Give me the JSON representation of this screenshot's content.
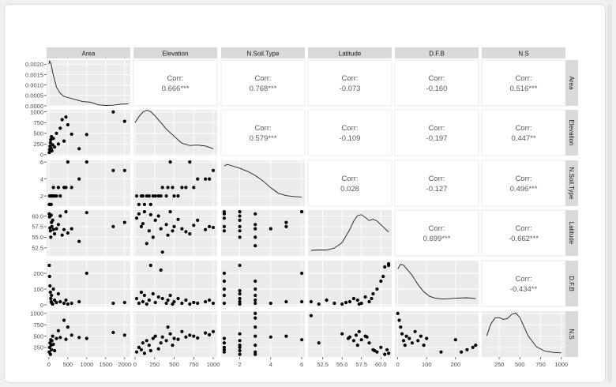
{
  "chart_data": {
    "type": "scatter",
    "variables": [
      "Area",
      "Elevation",
      "N.Soil.Type",
      "Latitude",
      "D.F.B",
      "N.S"
    ],
    "axes": {
      "Area": {
        "lim": [
          -60,
          2150
        ],
        "ticks": [
          0,
          500,
          1000,
          1500,
          2000
        ],
        "labels": [
          "0",
          "500",
          "1000",
          "1500",
          "2000"
        ]
      },
      "Elevation": {
        "lim": [
          -20,
          1050
        ],
        "ticks": [
          0,
          250,
          500,
          750,
          1000
        ],
        "labels": [
          "0",
          "250",
          "500",
          "750",
          "1000"
        ]
      },
      "N.Soil.Type": {
        "lim": [
          0.8,
          6.2
        ],
        "ticks": [
          2,
          4,
          6
        ],
        "labels": [
          "2",
          "4",
          "6"
        ]
      },
      "Latitude": {
        "lim": [
          50.6,
          61.4
        ],
        "ticks": [
          52.5,
          55.0,
          57.5,
          60.0
        ],
        "labels": [
          "52.5",
          "55.0",
          "57.5",
          "60.0"
        ]
      },
      "D.F.B": {
        "lim": [
          -10,
          280
        ],
        "ticks": [
          0,
          100,
          200
        ],
        "labels": [
          "0",
          "100",
          "200"
        ]
      },
      "N.S": {
        "lim": [
          40,
          1050
        ],
        "ticks": [
          250,
          500,
          750,
          1000
        ],
        "labels": [
          "250",
          "500",
          "750",
          "1000"
        ]
      }
    },
    "density_axis": {
      "lim": [
        0,
        0.0022
      ],
      "ticks": [
        0,
        0.0005,
        0.001,
        0.0015,
        0.002
      ],
      "labels": [
        "0.0000",
        "0.0005",
        "0.0010",
        "0.0015",
        "0.0020"
      ]
    },
    "correlations": [
      {
        "row": "Area",
        "col": "Elevation",
        "label": "Corr:",
        "value": "0.666***"
      },
      {
        "row": "Area",
        "col": "N.Soil.Type",
        "label": "Corr:",
        "value": "0.768***"
      },
      {
        "row": "Area",
        "col": "Latitude",
        "label": "Corr:",
        "value": "-0.073"
      },
      {
        "row": "Area",
        "col": "D.F.B",
        "label": "Corr:",
        "value": "-0.160"
      },
      {
        "row": "Area",
        "col": "N.S",
        "label": "Corr:",
        "value": "0.516***"
      },
      {
        "row": "Elevation",
        "col": "N.Soil.Type",
        "label": "Corr:",
        "value": "0.579***"
      },
      {
        "row": "Elevation",
        "col": "Latitude",
        "label": "Corr:",
        "value": "-0.109"
      },
      {
        "row": "Elevation",
        "col": "D.F.B",
        "label": "Corr:",
        "value": "-0.197"
      },
      {
        "row": "Elevation",
        "col": "N.S",
        "label": "Corr:",
        "value": "0.447**"
      },
      {
        "row": "N.Soil.Type",
        "col": "Latitude",
        "label": "Corr:",
        "value": "0.028"
      },
      {
        "row": "N.Soil.Type",
        "col": "D.F.B",
        "label": "Corr:",
        "value": "-0.127"
      },
      {
        "row": "N.Soil.Type",
        "col": "N.S",
        "label": "Corr:",
        "value": "0.496***"
      },
      {
        "row": "Latitude",
        "col": "D.F.B",
        "label": "Corr:",
        "value": "0.699***"
      },
      {
        "row": "Latitude",
        "col": "N.S",
        "label": "Corr:",
        "value": "-0.662***"
      },
      {
        "row": "D.F.B",
        "col": "N.S",
        "label": "Corr:",
        "value": "-0.434**"
      }
    ],
    "densities": {
      "Area": {
        "x": [
          0,
          20,
          60,
          100,
          200,
          300,
          400,
          500,
          700,
          900,
          1100,
          1300,
          1500,
          1700,
          1900,
          2100
        ],
        "y": [
          0.002,
          0.00215,
          0.002,
          0.0016,
          0.0009,
          0.0006,
          0.00045,
          0.0004,
          0.0003,
          0.0002,
          0.00018,
          5e-05,
          2e-05,
          3e-05,
          8e-05,
          0.0001
        ]
      },
      "Elevation": {
        "x": [
          0,
          50,
          100,
          150,
          200,
          250,
          300,
          350,
          400,
          500,
          600,
          700,
          800,
          900,
          1000
        ],
        "y": [
          0.72,
          0.85,
          0.95,
          0.99,
          0.96,
          0.88,
          0.78,
          0.68,
          0.58,
          0.42,
          0.27,
          0.22,
          0.23,
          0.21,
          0.15
        ]
      },
      "N.Soil.Type": {
        "x": [
          1,
          1.2,
          1.5,
          2,
          2.5,
          3,
          3.5,
          4,
          4.5,
          5,
          5.5,
          6
        ],
        "y": [
          0.88,
          0.91,
          0.88,
          0.83,
          0.76,
          0.67,
          0.55,
          0.4,
          0.28,
          0.23,
          0.21,
          0.2
        ]
      },
      "Latitude": {
        "x": [
          51,
          52,
          53,
          54,
          55,
          56,
          56.5,
          57,
          57.5,
          58,
          58.5,
          59,
          59.5,
          60,
          60.5,
          61
        ],
        "y": [
          0.12,
          0.13,
          0.13,
          0.17,
          0.29,
          0.58,
          0.76,
          0.88,
          0.9,
          0.84,
          0.77,
          0.8,
          0.76,
          0.68,
          0.6,
          0.52
        ]
      },
      "D.F.B": {
        "x": [
          0,
          10,
          20,
          30,
          50,
          70,
          90,
          110,
          130,
          160,
          200,
          240,
          270
        ],
        "y": [
          0.82,
          0.92,
          0.9,
          0.83,
          0.68,
          0.48,
          0.32,
          0.22,
          0.18,
          0.16,
          0.18,
          0.19,
          0.17
        ]
      },
      "N.S": {
        "x": [
          100,
          150,
          200,
          250,
          300,
          350,
          400,
          450,
          500,
          550,
          600,
          700,
          800,
          900,
          1000
        ],
        "y": [
          0.46,
          0.72,
          0.85,
          0.86,
          0.82,
          0.84,
          0.93,
          0.96,
          0.86,
          0.66,
          0.46,
          0.22,
          0.13,
          0.1,
          0.09
        ]
      }
    },
    "scatter": {
      "Elevation~Area": {
        "x": [
          10,
          20,
          30,
          40,
          50,
          60,
          70,
          80,
          100,
          120,
          150,
          200,
          250,
          300,
          350,
          400,
          450,
          500,
          600,
          800,
          1000,
          1700,
          2000
        ],
        "y": [
          50,
          120,
          200,
          280,
          350,
          150,
          420,
          90,
          230,
          380,
          180,
          500,
          250,
          620,
          820,
          320,
          880,
          700,
          480,
          140,
          470,
          1000,
          780
        ]
      },
      "N.Soil.Type~Area": {
        "x": [
          10,
          20,
          30,
          40,
          50,
          60,
          80,
          100,
          120,
          150,
          200,
          250,
          300,
          400,
          450,
          500,
          600,
          800,
          1000,
          1700,
          2000
        ],
        "y": [
          1,
          2,
          1,
          2,
          2,
          1,
          2,
          2,
          3,
          2,
          2,
          3,
          2,
          3,
          3,
          6,
          3,
          4,
          6,
          5,
          5
        ]
      },
      "N.Soil.Type~Elevation": {
        "x": [
          20,
          50,
          80,
          100,
          120,
          150,
          180,
          200,
          230,
          260,
          300,
          330,
          350,
          400,
          420,
          450,
          480,
          500,
          550,
          600,
          650,
          700,
          750,
          800,
          900,
          950,
          1000
        ],
        "y": [
          2,
          1,
          2,
          2,
          1,
          2,
          2,
          1,
          2,
          2,
          2,
          2,
          3,
          2,
          3,
          6,
          3,
          2,
          2,
          3,
          3,
          6,
          3,
          4,
          4,
          4,
          5
        ]
      },
      "Latitude~Area": {
        "x": [
          10,
          20,
          30,
          40,
          50,
          60,
          70,
          80,
          100,
          120,
          150,
          200,
          250,
          300,
          350,
          400,
          450,
          500,
          600,
          800,
          1000,
          1700,
          2000
        ],
        "y": [
          60.5,
          59.8,
          57.2,
          56.5,
          55.0,
          60.2,
          58.5,
          57.5,
          59.0,
          56.8,
          55.8,
          57.0,
          58.0,
          60.0,
          55.5,
          56.8,
          61.0,
          56.0,
          57.0,
          54.0,
          60.8,
          57.5,
          58.5
        ]
      },
      "Latitude~Elevation": {
        "x": [
          20,
          50,
          80,
          100,
          120,
          150,
          180,
          200,
          230,
          260,
          300,
          330,
          350,
          400,
          420,
          450,
          480,
          500,
          550,
          600,
          650,
          700,
          750,
          800,
          900,
          950,
          1000
        ],
        "y": [
          59.5,
          60.5,
          57.5,
          58.2,
          61.0,
          53.5,
          56.5,
          60.3,
          55.0,
          59.0,
          60.0,
          57.0,
          51.5,
          58.0,
          55.5,
          61.0,
          56.5,
          57.5,
          59.2,
          57.0,
          56.3,
          55.8,
          57.8,
          59.0,
          56.8,
          57.5,
          57.3
        ]
      },
      "Latitude~N.Soil.Type": {
        "x": [
          1,
          1,
          1,
          1,
          1,
          2,
          2,
          2,
          2,
          2,
          2,
          3,
          3,
          3,
          3,
          3,
          4,
          5,
          5,
          6
        ],
        "y": [
          57.5,
          59.5,
          60.5,
          61.0,
          56.5,
          60.0,
          57.5,
          59.0,
          61.0,
          55.0,
          56.5,
          60.5,
          58.0,
          57.0,
          55.0,
          53.0,
          57.0,
          58.5,
          57.5,
          61.0
        ]
      },
      "D.F.B~Area": {
        "x": [
          10,
          20,
          30,
          40,
          50,
          60,
          70,
          80,
          100,
          120,
          150,
          200,
          250,
          300,
          400,
          450,
          500,
          600,
          800,
          1000,
          1700,
          2000
        ],
        "y": [
          250,
          180,
          120,
          80,
          40,
          20,
          60,
          10,
          5,
          100,
          30,
          15,
          70,
          20,
          10,
          30,
          5,
          10,
          20,
          200,
          10,
          15
        ]
      },
      "D.F.B~Elevation": {
        "x": [
          20,
          50,
          80,
          100,
          120,
          150,
          180,
          200,
          230,
          260,
          300,
          330,
          350,
          400,
          420,
          450,
          480,
          500,
          550,
          600,
          650,
          700,
          750,
          800,
          900,
          950,
          1000
        ],
        "y": [
          40,
          10,
          80,
          20,
          60,
          5,
          30,
          250,
          70,
          15,
          50,
          220,
          40,
          10,
          30,
          60,
          5,
          20,
          40,
          10,
          30,
          5,
          15,
          10,
          20,
          30,
          10
        ]
      },
      "D.F.B~N.Soil.Type": {
        "x": [
          1,
          1,
          1,
          1,
          1,
          2,
          2,
          2,
          2,
          2,
          2,
          3,
          3,
          3,
          3,
          3,
          4,
          5,
          6,
          6
        ],
        "y": [
          10,
          60,
          100,
          150,
          200,
          5,
          40,
          90,
          250,
          20,
          70,
          10,
          60,
          150,
          30,
          100,
          10,
          20,
          20,
          200
        ]
      },
      "D.F.B~Latitude": {
        "x": [
          51,
          52,
          53,
          54,
          55.5,
          56,
          56.5,
          57,
          57.5,
          58,
          58.5,
          59,
          59.5,
          60,
          60.3,
          60.5,
          61,
          61,
          55,
          57.2,
          58.8
        ],
        "y": [
          20,
          5,
          30,
          10,
          15,
          20,
          40,
          30,
          10,
          50,
          20,
          70,
          100,
          150,
          180,
          240,
          260,
          250,
          5,
          5,
          40
        ]
      },
      "N.S~Area": {
        "x": [
          10,
          20,
          30,
          40,
          50,
          60,
          70,
          80,
          100,
          120,
          150,
          200,
          250,
          300,
          400,
          450,
          500,
          600,
          800,
          1000,
          1700,
          2000
        ],
        "y": [
          150,
          250,
          350,
          100,
          420,
          300,
          200,
          400,
          500,
          320,
          180,
          450,
          620,
          470,
          850,
          430,
          700,
          520,
          470,
          450,
          580,
          520
        ]
      },
      "N.S~Elevation": {
        "x": [
          20,
          50,
          80,
          100,
          120,
          150,
          180,
          200,
          230,
          260,
          300,
          330,
          350,
          400,
          420,
          450,
          480,
          500,
          550,
          600,
          650,
          700,
          750,
          800,
          900,
          950,
          1000
        ],
        "y": [
          150,
          250,
          200,
          350,
          120,
          400,
          300,
          180,
          450,
          500,
          220,
          350,
          480,
          400,
          700,
          550,
          300,
          450,
          430,
          600,
          480,
          520,
          500,
          460,
          570,
          530,
          600
        ]
      },
      "N.S~N.Soil.Type": {
        "x": [
          1,
          1,
          1,
          1,
          1,
          2,
          2,
          2,
          2,
          2,
          2,
          3,
          3,
          3,
          3,
          3,
          3,
          3,
          4,
          5,
          6
        ],
        "y": [
          150,
          250,
          350,
          450,
          200,
          100,
          300,
          400,
          550,
          180,
          250,
          100,
          300,
          500,
          700,
          900,
          1000,
          150,
          480,
          500,
          420
        ]
      },
      "N.S~Latitude": {
        "x": [
          51,
          52,
          55,
          56,
          56.5,
          57,
          57.5,
          58,
          58.5,
          59,
          59.5,
          60,
          60.5,
          61,
          57.2,
          58.2,
          55.8,
          56.8,
          59.2,
          60.8
        ],
        "y": [
          950,
          350,
          550,
          480,
          400,
          300,
          420,
          500,
          350,
          200,
          150,
          250,
          100,
          120,
          600,
          480,
          450,
          520,
          180,
          200
        ]
      },
      "N.S~D.F.B": {
        "x": [
          0,
          5,
          10,
          15,
          20,
          25,
          30,
          40,
          50,
          60,
          70,
          80,
          90,
          100,
          150,
          200,
          220,
          240,
          260,
          270
        ],
        "y": [
          1000,
          850,
          700,
          550,
          400,
          300,
          500,
          450,
          350,
          600,
          400,
          500,
          300,
          450,
          150,
          420,
          150,
          200,
          250,
          300
        ]
      }
    }
  }
}
